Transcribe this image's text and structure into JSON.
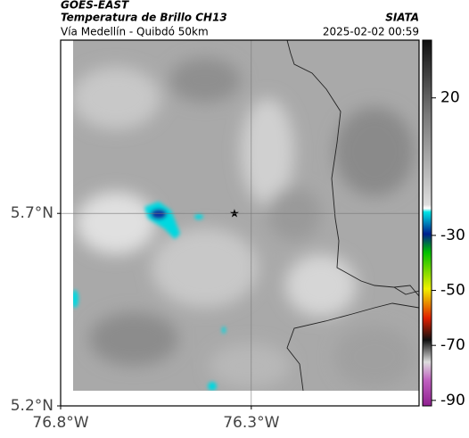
{
  "header": {
    "source": "GOES-EAST",
    "title": "Temperatura de Brillo CH13",
    "subtitle": "Vía Medellín - Quibdó 50km",
    "agency": "SIATA",
    "datetime": "2025-02-02 00:59"
  },
  "map": {
    "xlim": [
      -76.8,
      -75.86
    ],
    "ylim": [
      5.2,
      6.15
    ],
    "xticks": [
      {
        "value": -76.8,
        "label": "76.8°W"
      },
      {
        "value": -76.3,
        "label": "76.3°W"
      }
    ],
    "yticks": [
      {
        "value": 5.2,
        "label": "5.2°N"
      },
      {
        "value": 5.7,
        "label": "5.7°N"
      }
    ],
    "grid": true
  },
  "colorbar": {
    "lim": [
      -92,
      41
    ],
    "ticks": [
      20,
      -30,
      -50,
      -70,
      -90
    ]
  }
}
